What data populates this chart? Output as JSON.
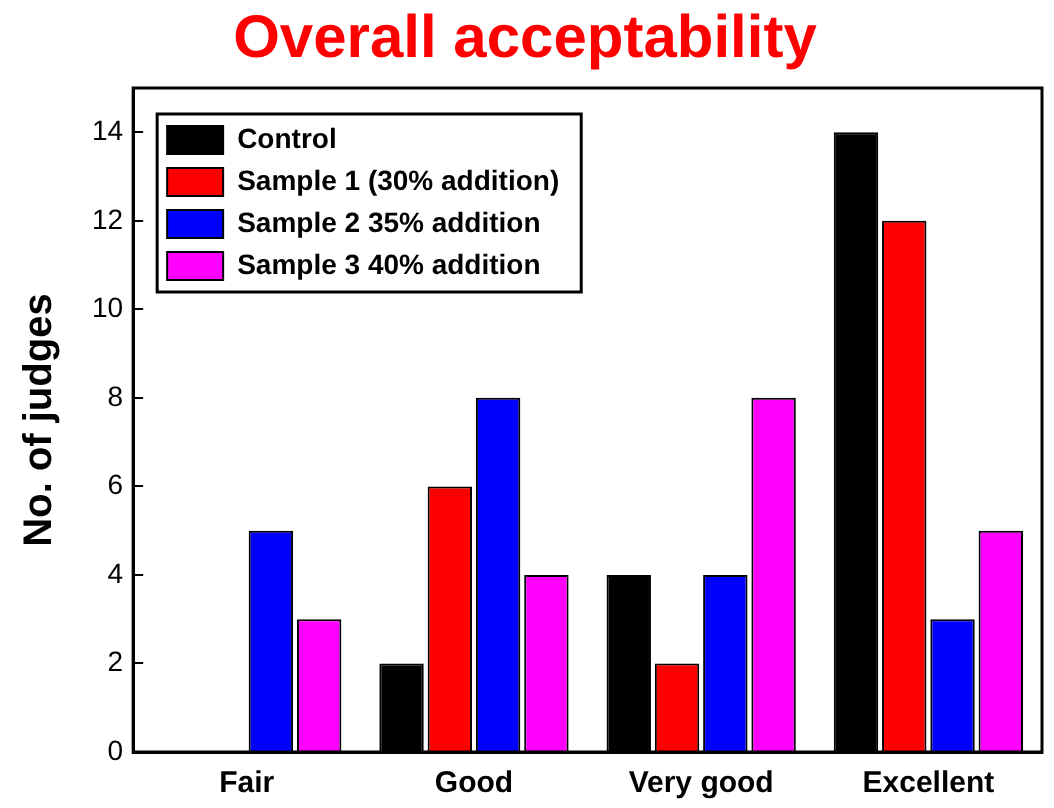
{
  "chart_data": {
    "type": "bar",
    "title": "Overall acceptability",
    "ylabel": "No. of judges",
    "categories": [
      "Fair",
      "Good",
      "Very good",
      "Excellent"
    ],
    "series": [
      {
        "name": "Control",
        "color": "#000000",
        "values": [
          0,
          2,
          4,
          14
        ]
      },
      {
        "name": "Sample 1 (30% addition)",
        "color": "#ff0000",
        "values": [
          0,
          6,
          2,
          12
        ]
      },
      {
        "name": "Sample 2 35% addition",
        "color": "#0000ff",
        "values": [
          5,
          8,
          4,
          3
        ]
      },
      {
        "name": "Sample 3 40% addition",
        "color": "#ff00ff",
        "values": [
          3,
          4,
          8,
          5
        ]
      }
    ],
    "ylim": [
      0,
      15
    ],
    "yticks": [
      0,
      2,
      4,
      6,
      8,
      10,
      12,
      14
    ],
    "grid": false,
    "legend": "top left"
  }
}
